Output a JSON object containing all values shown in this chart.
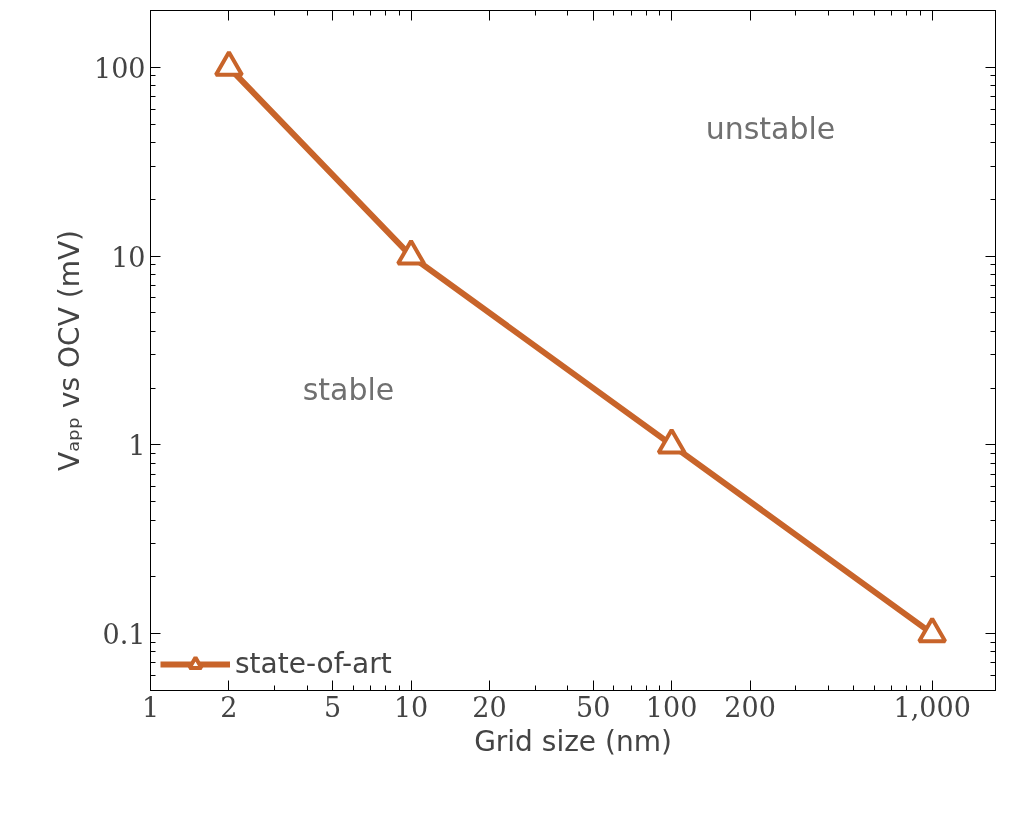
{
  "chart_data": {
    "type": "line",
    "xlabel": "Grid size (nm)",
    "ylabel": "Vₐₚₚ vs OCV (mV)",
    "log": "xy",
    "xlim": [
      1,
      1750
    ],
    "ylim": [
      0.05,
      200
    ],
    "xticks": [
      1,
      {
        "value": 2,
        "label": "2"
      },
      {
        "value": 5,
        "label": "5"
      },
      10,
      {
        "value": 20,
        "label": "20"
      },
      {
        "value": 50,
        "label": "50"
      },
      100,
      {
        "value": 200,
        "label": "200"
      },
      {
        "value": 1000,
        "label": "1,000"
      }
    ],
    "yticks": [
      0.1,
      1,
      10,
      100
    ],
    "series": [
      {
        "name": "state-of-art",
        "color": "#c8642a",
        "x": [
          2,
          10,
          100,
          1000
        ],
        "values": [
          100,
          10,
          1,
          0.1
        ]
      }
    ],
    "marker": "triangle",
    "line_style": "solid",
    "grid": false,
    "legend": "bottom left",
    "annotations": [
      "unstable",
      "stable"
    ]
  }
}
